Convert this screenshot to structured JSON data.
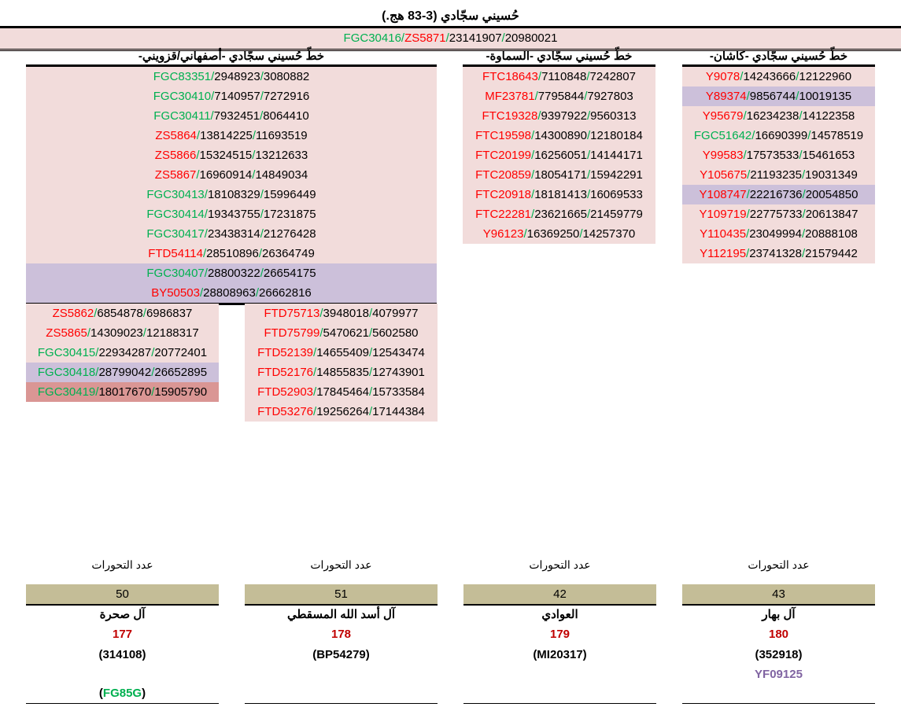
{
  "title": "حُسيني سجّادي (3-83 هج.)",
  "banner": {
    "snp": "FGC30416",
    "snp2": "ZS5871",
    "a": "23141907",
    "b": "20980021"
  },
  "colors": {
    "green": "#00b050",
    "red": "#ff0000",
    "pink": "#f2dcdb",
    "lavender": "#ccc0da",
    "rose": "#da9694",
    "tan": "#c4bd97"
  },
  "columns": [
    {
      "header": "خطّ حُسيني سجّادي -أصفهاني/قزويني-",
      "rows": [
        {
          "snp": "FGC83351",
          "c": "g",
          "a": "2948923",
          "b": "3080882",
          "bg": "pink"
        },
        {
          "snp": "FGC30410",
          "c": "g",
          "a": "7140957",
          "b": "7272916",
          "bg": "pink"
        },
        {
          "snp": "FGC30411",
          "c": "g",
          "a": "7932451",
          "b": "8064410",
          "bg": "pink"
        },
        {
          "snp": "ZS5864",
          "c": "r",
          "a": "13814225",
          "b": "11693519",
          "bg": "pink"
        },
        {
          "snp": "ZS5866",
          "c": "r",
          "a": "15324515",
          "b": "13212633",
          "bg": "pink"
        },
        {
          "snp": "ZS5867",
          "c": "r",
          "a": "16960914",
          "b": "14849034",
          "bg": "pink"
        },
        {
          "snp": "FGC30413",
          "c": "g",
          "a": "18108329",
          "b": "15996449",
          "bg": "pink"
        },
        {
          "snp": "FGC30414",
          "c": "g",
          "a": "19343755",
          "b": "17231875",
          "bg": "pink"
        },
        {
          "snp": "FGC30417",
          "c": "g",
          "a": "23438314",
          "b": "21276428",
          "bg": "pink"
        },
        {
          "snp": "FTD54114",
          "c": "r",
          "a": "28510896",
          "b": "26364749",
          "bg": "pink"
        },
        {
          "snp": "FGC30407",
          "c": "g",
          "a": "28800322",
          "b": "26654175",
          "bg": "lavender"
        },
        {
          "snp": "BY50503",
          "c": "r",
          "a": "28808963",
          "b": "26662816",
          "bg": "lavender"
        }
      ]
    },
    {
      "header": "خطّ حُسيني سجّادي -السماوة-",
      "rows": [
        {
          "snp": "FTC18643",
          "c": "r",
          "a": "7110848",
          "b": "7242807",
          "bg": "pink"
        },
        {
          "snp": "MF23781",
          "c": "r",
          "a": "7795844",
          "b": "7927803",
          "bg": "pink"
        },
        {
          "snp": "FTC19328",
          "c": "r",
          "a": "9397922",
          "b": "9560313",
          "bg": "pink"
        },
        {
          "snp": "FTC19598",
          "c": "r",
          "a": "14300890",
          "b": "12180184",
          "bg": "pink"
        },
        {
          "snp": "FTC20199",
          "c": "r",
          "a": "16256051",
          "b": "14144171",
          "bg": "pink"
        },
        {
          "snp": "FTC20859",
          "c": "r",
          "a": "18054171",
          "b": "15942291",
          "bg": "pink"
        },
        {
          "snp": "FTC20918",
          "c": "r",
          "a": "18181413",
          "b": "16069533",
          "bg": "pink"
        },
        {
          "snp": "FTC22281",
          "c": "r",
          "a": "23621665",
          "b": "21459779",
          "bg": "pink"
        },
        {
          "snp": "Y96123",
          "c": "r",
          "a": "16369250",
          "b": "14257370",
          "bg": "pink"
        }
      ]
    },
    {
      "header": "خطّ حُسيني سجّادي -كاشان-",
      "rows": [
        {
          "snp": "Y9078",
          "c": "r",
          "a": "14243666",
          "b": "12122960",
          "bg": "pink"
        },
        {
          "snp": "Y89374",
          "c": "r",
          "a": "9856744",
          "b": "10019135",
          "bg": "lavender"
        },
        {
          "snp": "Y95679",
          "c": "r",
          "a": "16234238",
          "b": "14122358",
          "bg": "pink"
        },
        {
          "snp": "FGC51642",
          "c": "g",
          "a": "16690399",
          "b": "14578519",
          "bg": "pink"
        },
        {
          "snp": "Y99583",
          "c": "r",
          "a": "17573533",
          "b": "15461653",
          "bg": "pink"
        },
        {
          "snp": "Y105675",
          "c": "r",
          "a": "21193235",
          "b": "19031349",
          "bg": "pink"
        },
        {
          "snp": "Y108747",
          "c": "r",
          "a": "22216736",
          "b": "20054850",
          "bg": "lavender"
        },
        {
          "snp": "Y109719",
          "c": "r",
          "a": "22775733",
          "b": "20613847",
          "bg": "pink"
        },
        {
          "snp": "Y110435",
          "c": "r",
          "a": "23049994",
          "b": "20888108",
          "bg": "pink"
        },
        {
          "snp": "Y112195",
          "c": "r",
          "a": "23741328",
          "b": "21579442",
          "bg": "pink"
        }
      ]
    },
    {
      "header": "",
      "rows": [
        {
          "snp": "ZS5862",
          "c": "r",
          "a": "6854878",
          "b": "6986837",
          "bg": "pink"
        },
        {
          "snp": "ZS5865",
          "c": "r",
          "a": "14309023",
          "b": "12188317",
          "bg": "pink"
        },
        {
          "snp": "FGC30415",
          "c": "g",
          "a": "22934287",
          "b": "20772401",
          "bg": "pink"
        },
        {
          "snp": "FGC30418",
          "c": "g",
          "a": "28799042",
          "b": "26652895",
          "bg": "lavender"
        },
        {
          "snp": "FGC30419",
          "c": "g",
          "a": "18017670",
          "b": "15905790",
          "bg": "rose"
        }
      ]
    },
    {
      "header": "",
      "rows": [
        {
          "snp": "FTD75713",
          "c": "r",
          "a": "3948018",
          "b": "4079977",
          "bg": "pink"
        },
        {
          "snp": "FTD75799",
          "c": "r",
          "a": "5470621",
          "b": "5602580",
          "bg": "pink"
        },
        {
          "snp": "FTD52139",
          "c": "r",
          "a": "14655409",
          "b": "12543474",
          "bg": "pink"
        },
        {
          "snp": "FTD52176",
          "c": "r",
          "a": "14855835",
          "b": "12743901",
          "bg": "pink"
        },
        {
          "snp": "FTD52903",
          "c": "r",
          "a": "17845464",
          "b": "15733584",
          "bg": "pink"
        },
        {
          "snp": "FTD53276",
          "c": "r",
          "a": "19256264",
          "b": "17144384",
          "bg": "pink"
        }
      ]
    }
  ],
  "footers": [
    {
      "label": "عدد التحورات",
      "count": "50",
      "name": "آل صحرة",
      "num": "177",
      "code": "(314108)",
      "extra": "FG85G",
      "extra_paren": true,
      "extra_color": "#00b050"
    },
    {
      "label": "عدد التحورات",
      "count": "51",
      "name": "آل أسد الله المسقطي",
      "num": "178",
      "code": "(BP54279)",
      "extra": "",
      "extra_paren": false,
      "extra_color": ""
    },
    {
      "label": "عدد التحورات",
      "count": "42",
      "name": "العوادي",
      "num": "179",
      "code": "(MI20317)",
      "extra": "",
      "extra_paren": false,
      "extra_color": ""
    },
    {
      "label": "عدد التحورات",
      "count": "43",
      "name": "آل بهار",
      "num": "180",
      "code": "(352918)",
      "extra": "YF09125",
      "extra_paren": false,
      "extra_color": "#8064a2"
    }
  ]
}
